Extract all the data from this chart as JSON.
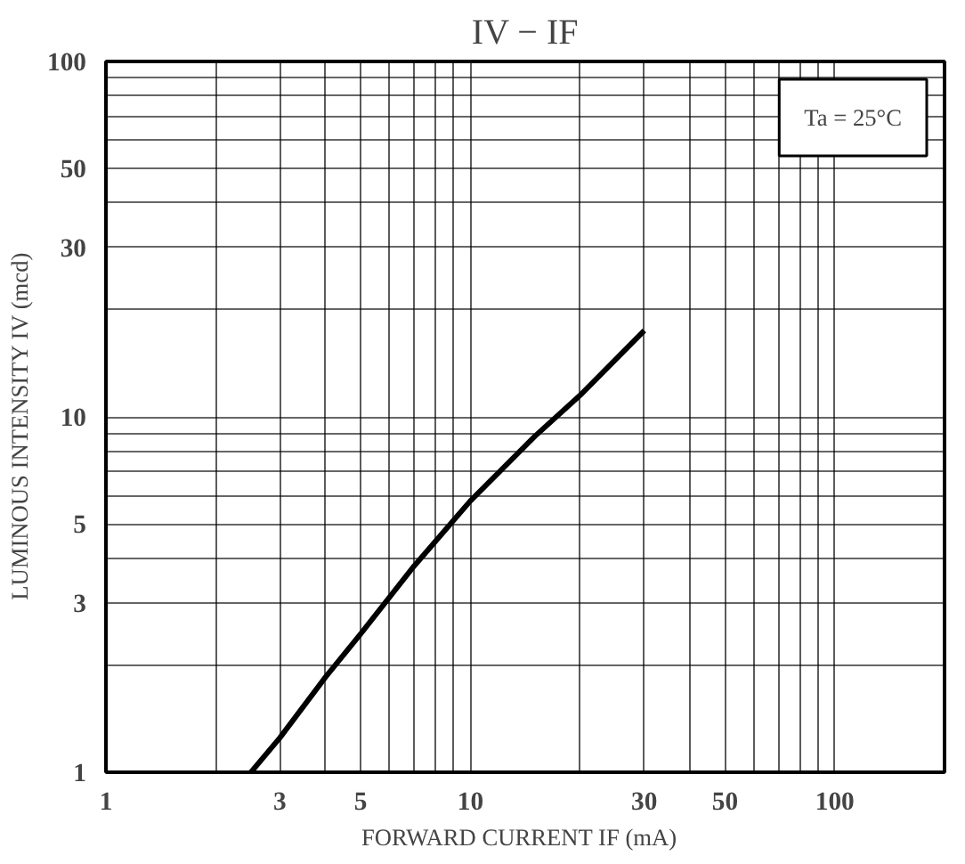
{
  "chart_data": {
    "type": "line",
    "title": "IV − IF",
    "xlabel": "FORWARD CURRENT  IF  (mA)",
    "ylabel": "LUMINOUS INTENSITY  IV   (mcd)",
    "annotations": [
      "Ta = 25°C"
    ],
    "log": "xy",
    "grid": true,
    "marker": "none",
    "line_style": "solid",
    "xlim": [
      1,
      200
    ],
    "ylim": [
      1,
      100
    ],
    "xticks": [
      1,
      {
        "value": 2,
        "label": null
      },
      3,
      {
        "value": 4,
        "label": null
      },
      5,
      {
        "value": 6,
        "label": null
      },
      {
        "value": 7,
        "label": null
      },
      {
        "value": 8,
        "label": null
      },
      {
        "value": 9,
        "label": null
      },
      10,
      {
        "value": 20,
        "label": null
      },
      30,
      {
        "value": 40,
        "label": null
      },
      50,
      {
        "value": 60,
        "label": null
      },
      {
        "value": 70,
        "label": null
      },
      {
        "value": 80,
        "label": null
      },
      {
        "value": 90,
        "label": null
      },
      100
    ],
    "yticks": [
      1,
      {
        "value": 2,
        "label": null
      },
      3,
      {
        "value": 4,
        "label": null
      },
      5,
      {
        "value": 6,
        "label": null
      },
      {
        "value": 7,
        "label": null
      },
      {
        "value": 8,
        "label": null
      },
      {
        "value": 9,
        "label": null
      },
      10,
      {
        "value": 20,
        "label": null
      },
      30,
      {
        "value": 40,
        "label": null
      },
      50,
      {
        "value": 60,
        "label": null
      },
      {
        "value": 70,
        "label": null
      },
      {
        "value": 80,
        "label": null
      },
      {
        "value": 90,
        "label": null
      },
      100
    ],
    "series": [
      {
        "color": "#000000",
        "x": [
          2.5,
          3,
          4,
          5,
          7,
          10,
          15,
          20,
          30
        ],
        "values": [
          1,
          1.25,
          1.85,
          2.45,
          3.8,
          5.8,
          8.8,
          11.5,
          17.5
        ]
      }
    ]
  }
}
